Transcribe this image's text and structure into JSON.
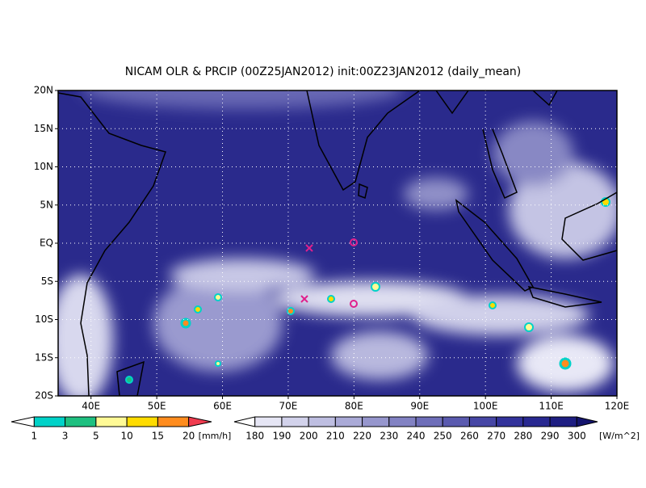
{
  "map": {
    "title": "NICAM OLR & PRCIP (00Z25JAN2012) init:00Z23JAN2012 (daily_mean)",
    "xlim": [
      35,
      120
    ],
    "ylim": [
      -20,
      20
    ],
    "xticks": [
      {
        "value": 40,
        "label": "40E"
      },
      {
        "value": 50,
        "label": "50E"
      },
      {
        "value": 60,
        "label": "60E"
      },
      {
        "value": 70,
        "label": "70E"
      },
      {
        "value": 80,
        "label": "80E"
      },
      {
        "value": 90,
        "label": "90E"
      },
      {
        "value": 100,
        "label": "100E"
      },
      {
        "value": 110,
        "label": "110E"
      },
      {
        "value": 120,
        "label": "120E"
      }
    ],
    "yticks": [
      {
        "value": 20,
        "label": "20N"
      },
      {
        "value": 15,
        "label": "15N"
      },
      {
        "value": 10,
        "label": "10N"
      },
      {
        "value": 5,
        "label": "5N"
      },
      {
        "value": 0,
        "label": "EQ"
      },
      {
        "value": -5,
        "label": "5S"
      },
      {
        "value": -10,
        "label": "10S"
      },
      {
        "value": -15,
        "label": "15S"
      },
      {
        "value": -20,
        "label": "20S"
      }
    ],
    "grid": true
  },
  "colorbars": [
    {
      "labels": [
        1,
        3,
        5,
        10,
        15,
        20
      ],
      "unit": "[mm/h]",
      "colors": [
        "#ffffff",
        "#00d2c8",
        "#1ec080",
        "#fffa96",
        "#ffdc00",
        "#ff8c1e",
        "#f03c50"
      ]
    },
    {
      "labels": [
        180,
        190,
        200,
        210,
        220,
        230,
        240,
        250,
        260,
        270,
        280,
        290,
        300
      ],
      "unit": "[W/m^2]",
      "colors": [
        "#ffffff",
        "#e6e6f5",
        "#d2d2eb",
        "#bebee1",
        "#aaaad7",
        "#9696cd",
        "#8282c3",
        "#6e6eb9",
        "#5a5aaf",
        "#4646a5",
        "#32329b",
        "#282891",
        "#1e1e82",
        "#14146e"
      ]
    }
  ]
}
